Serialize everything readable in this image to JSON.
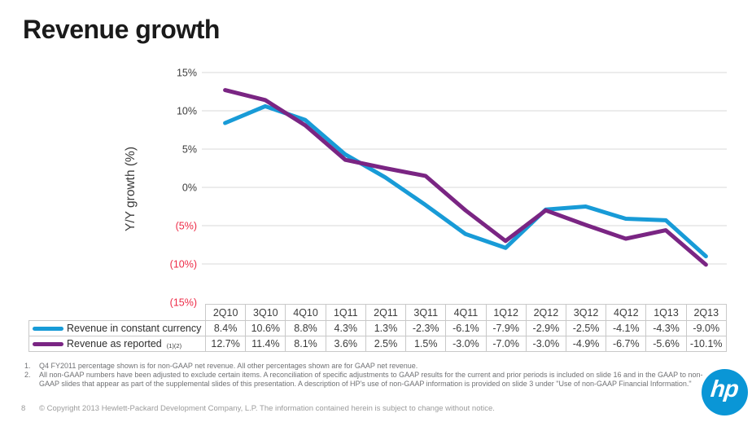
{
  "slide": {
    "title": "Revenue growth",
    "page_number": "8",
    "copyright": "© Copyright 2013 Hewlett-Packard Development Company, L.P. The information contained herein is subject to change without notice."
  },
  "chart_data": {
    "type": "line",
    "title": "Revenue growth",
    "xlabel": "",
    "ylabel": "Y/Y growth (%)",
    "ylim": [
      -15,
      15
    ],
    "grid": true,
    "legend_position": "table-left",
    "yticks": [
      {
        "value": 15,
        "label": "15%"
      },
      {
        "value": 10,
        "label": "10%"
      },
      {
        "value": 5,
        "label": "5%"
      },
      {
        "value": 0,
        "label": "0%"
      },
      {
        "value": -5,
        "label": "(5%)"
      },
      {
        "value": -10,
        "label": "(10%)"
      },
      {
        "value": -15,
        "label": "(15%)"
      }
    ],
    "categories": [
      "2Q10",
      "3Q10",
      "4Q10",
      "1Q11",
      "2Q11",
      "3Q11",
      "4Q11",
      "1Q12",
      "2Q12",
      "3Q12",
      "4Q12",
      "1Q13",
      "2Q13"
    ],
    "series": [
      {
        "name": "Revenue in constant currency",
        "footnote_ref": "(1)(2)",
        "color": "#189bd7",
        "values": [
          8.4,
          10.6,
          8.8,
          4.3,
          1.3,
          -2.3,
          -6.1,
          -7.9,
          -2.9,
          -2.5,
          -4.1,
          -4.3,
          -9.0
        ],
        "labels": [
          "8.4%",
          "10.6%",
          "8.8%",
          "4.3%",
          "1.3%",
          "-2.3%",
          "-6.1%",
          "-7.9%",
          "-2.9%",
          "-2.5%",
          "-4.1%",
          "-4.3%",
          "-9.0%"
        ]
      },
      {
        "name": "Revenue as reported",
        "footnote_ref": "(1)(2)",
        "color": "#7a2583",
        "values": [
          12.7,
          11.4,
          8.1,
          3.6,
          2.5,
          1.5,
          -3.0,
          -7.0,
          -3.0,
          -4.9,
          -6.7,
          -5.6,
          -10.1
        ],
        "labels": [
          "12.7%",
          "11.4%",
          "8.1%",
          "3.6%",
          "2.5%",
          "1.5%",
          "-3.0%",
          "-7.0%",
          "-3.0%",
          "-4.9%",
          "-6.7%",
          "-5.6%",
          "-10.1%"
        ]
      }
    ]
  },
  "footnotes": [
    {
      "num": "1.",
      "text": "Q4 FY2011 percentage shown is for non-GAAP net revenue.  All other percentages shown are for GAAP net revenue."
    },
    {
      "num": "2.",
      "text": "All non-GAAP numbers have been adjusted to exclude certain items. A reconciliation of specific adjustments to GAAP results for the current and prior periods is included on slide 16 and in the GAAP to non-GAAP slides that appear as part of the supplemental slides of this presentation. A description of HP's use of non-GAAP information is provided on slide 3 under \"Use of non-GAAP Financial Information.\""
    }
  ],
  "logo": {
    "text": "hp",
    "color": "#0a96d6"
  },
  "colors": {
    "grid": "#d9d9d9",
    "tick_positive": "#3c3c3c",
    "tick_negative": "#ed2b47",
    "table_border": "#c9c9c9",
    "footnote_text": "#707174",
    "footer_text": "#9b9b9b"
  }
}
